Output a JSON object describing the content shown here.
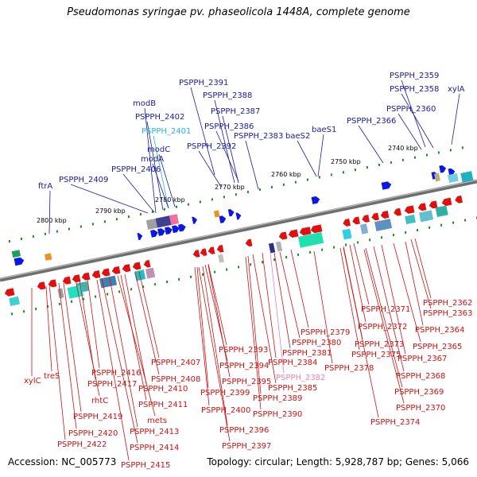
{
  "title": "Pseudomonas syringae pv. phaseolicola 1448A, complete genome",
  "footer": {
    "accession": "Accession: NC_005773",
    "summary": "Topology: circular; Length: 5,928,787 bp; Genes: 5,066"
  },
  "colors": {
    "forward_gene": "#0a18e0",
    "reverse_gene": "#e01010",
    "forward_label": "#1a1aa0",
    "reverse_label": "#d01010",
    "highlight_forward": "#22b8e6",
    "highlight_reverse": "#f080b0",
    "backbone": "#808080",
    "tick": "#1a8a1a"
  },
  "kbp_labels": [
    "2740 kbp",
    "2750 kbp",
    "2760 kbp",
    "2770 kbp",
    "2780 kbp",
    "2790 kbp",
    "2800 kbp"
  ],
  "forward_labels": [
    "PSPPH_2359",
    "PSPPH_2358",
    "xylA",
    "PSPPH_2360",
    "PSPPH_2391",
    "PSPPH_2388",
    "PSPPH_2387",
    "PSPPH_2386",
    "PSPPH_2366",
    "baeS1",
    "baeS2",
    "PSPPH_2383",
    "PSPPH_2392",
    "modB",
    "PSPPH_2402",
    "PSPPH_2401",
    "modC",
    "modA",
    "PSPPH_2406",
    "PSPPH_2409",
    "ftrA"
  ],
  "reverse_labels": [
    "PSPPH_2362",
    "PSPPH_2363",
    "PSPPH_2371",
    "PSPPH_2364",
    "PSPPH_2372",
    "PSPPH_2379",
    "PSPPH_2365",
    "PSPPH_2373",
    "PSPPH_2380",
    "PSPPH_2375",
    "PSPPH_2367",
    "PSPPH_2381",
    "PSPPH_2393",
    "PSPPH_2378",
    "PSPPH_2384",
    "PSPPH_2407",
    "PSPPH_2394",
    "PSPPH_2368",
    "xylC",
    "treS",
    "PSPPH_2416",
    "PSPPH_2382",
    "PSPPH_2408",
    "PSPPH_2417",
    "PSPPH_2395",
    "PSPPH_2385",
    "PSPPH_2410",
    "PSPPH_2369",
    "PSPPH_2399",
    "rhtC",
    "PSPPH_2389",
    "PSPPH_2411",
    "PSPPH_2370",
    "PSPPH_2400",
    "PSPPH_2419",
    "PSPPH_2390",
    "mets",
    "PSPPH_2374",
    "PSPPH_2396",
    "PSPPH_2413",
    "PSPPH_2420",
    "PSPPH_2422",
    "PSPPH_2414",
    "PSPPH_2397",
    "PSPPH_2415"
  ]
}
